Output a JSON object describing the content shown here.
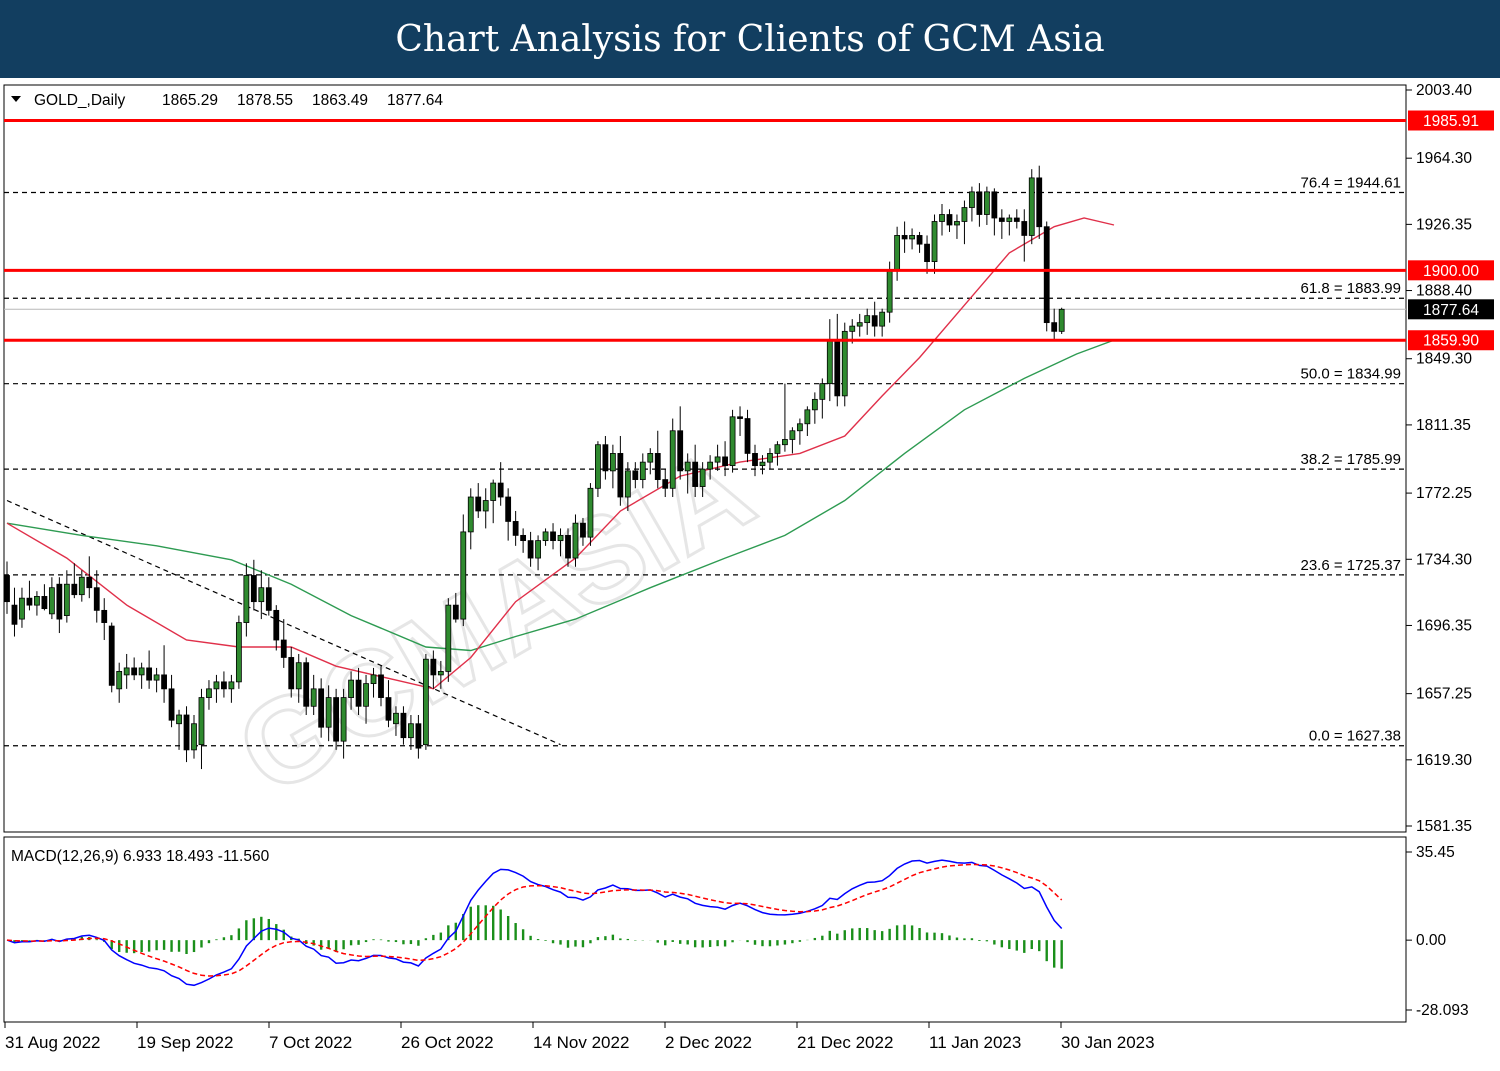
{
  "banner_title": "Chart Analysis for Clients of GCM Asia",
  "colors": {
    "banner_bg": "#123e60",
    "bull_candle": "#2f8a2f",
    "bear_candle": "#000000",
    "sr_line": "#ff0000",
    "fib_line": "#000000",
    "ma_fast": "#e0304a",
    "ma_slow": "#2e9b52",
    "macd_line": "#0000ff",
    "signal_line": "#ff0000",
    "histogram": "#1a8f1a"
  },
  "chart_data": [
    {
      "type": "candlestick",
      "symbol_label": "GOLD_,Daily",
      "ohlc_header": [
        "1865.29",
        "1878.55",
        "1863.49",
        "1877.64"
      ],
      "price_ticks": [
        "2003.40",
        "1964.30",
        "1926.35",
        "1888.40",
        "1849.30",
        "1811.35",
        "1772.25",
        "1734.30",
        "1696.35",
        "1657.25",
        "1619.30",
        "1581.35"
      ],
      "ylim": [
        1581.35,
        2003.4
      ],
      "date_labels": [
        "31 Aug 2022",
        "19 Sep 2022",
        "7 Oct 2022",
        "26 Oct 2022",
        "14 Nov 2022",
        "2 Dec 2022",
        "21 Dec 2022",
        "11 Jan 2023",
        "30 Jan 2023"
      ],
      "price_tags": [
        {
          "value": 1985.91,
          "label": "1985.91",
          "kind": "resistance"
        },
        {
          "value": 1900.0,
          "label": "1900.00",
          "kind": "resistance"
        },
        {
          "value": 1877.64,
          "label": "1877.64",
          "kind": "current"
        },
        {
          "value": 1859.9,
          "label": "1859.90",
          "kind": "support"
        }
      ],
      "fibonacci": [
        {
          "value": 1944.61,
          "label": "76.4 = 1944.61"
        },
        {
          "value": 1883.99,
          "label": "61.8 = 1883.99"
        },
        {
          "value": 1834.99,
          "label": "50.0 = 1834.99"
        },
        {
          "value": 1785.99,
          "label": "38.2 = 1785.99"
        },
        {
          "value": 1725.37,
          "label": "23.6 = 1725.37"
        },
        {
          "value": 1627.38,
          "label": "0.0 = 1627.38"
        }
      ],
      "candles": [
        {
          "o": 1725,
          "h": 1733,
          "l": 1703,
          "c": 1710
        },
        {
          "o": 1708,
          "h": 1718,
          "l": 1690,
          "c": 1697
        },
        {
          "o": 1700,
          "h": 1718,
          "l": 1695,
          "c": 1712
        },
        {
          "o": 1712,
          "h": 1722,
          "l": 1705,
          "c": 1708
        },
        {
          "o": 1708,
          "h": 1716,
          "l": 1702,
          "c": 1713
        },
        {
          "o": 1713,
          "h": 1720,
          "l": 1705,
          "c": 1706
        },
        {
          "o": 1703,
          "h": 1724,
          "l": 1700,
          "c": 1718
        },
        {
          "o": 1720,
          "h": 1724,
          "l": 1692,
          "c": 1700
        },
        {
          "o": 1702,
          "h": 1728,
          "l": 1698,
          "c": 1720
        },
        {
          "o": 1720,
          "h": 1732,
          "l": 1712,
          "c": 1714
        },
        {
          "o": 1714,
          "h": 1728,
          "l": 1710,
          "c": 1724
        },
        {
          "o": 1724,
          "h": 1736,
          "l": 1712,
          "c": 1718
        },
        {
          "o": 1718,
          "h": 1728,
          "l": 1698,
          "c": 1705
        },
        {
          "o": 1705,
          "h": 1712,
          "l": 1688,
          "c": 1698
        },
        {
          "o": 1696,
          "h": 1698,
          "l": 1658,
          "c": 1662
        },
        {
          "o": 1660,
          "h": 1675,
          "l": 1652,
          "c": 1670
        },
        {
          "o": 1668,
          "h": 1680,
          "l": 1660,
          "c": 1672
        },
        {
          "o": 1672,
          "h": 1678,
          "l": 1665,
          "c": 1668
        },
        {
          "o": 1668,
          "h": 1675,
          "l": 1660,
          "c": 1672
        },
        {
          "o": 1672,
          "h": 1682,
          "l": 1660,
          "c": 1665
        },
        {
          "o": 1665,
          "h": 1672,
          "l": 1658,
          "c": 1668
        },
        {
          "o": 1668,
          "h": 1685,
          "l": 1652,
          "c": 1660
        },
        {
          "o": 1660,
          "h": 1668,
          "l": 1638,
          "c": 1642
        },
        {
          "o": 1640,
          "h": 1648,
          "l": 1625,
          "c": 1645
        },
        {
          "o": 1645,
          "h": 1650,
          "l": 1618,
          "c": 1625
        },
        {
          "o": 1625,
          "h": 1645,
          "l": 1620,
          "c": 1640
        },
        {
          "o": 1628,
          "h": 1660,
          "l": 1614,
          "c": 1655
        },
        {
          "o": 1655,
          "h": 1665,
          "l": 1648,
          "c": 1660
        },
        {
          "o": 1660,
          "h": 1668,
          "l": 1652,
          "c": 1664
        },
        {
          "o": 1664,
          "h": 1670,
          "l": 1655,
          "c": 1660
        },
        {
          "o": 1660,
          "h": 1668,
          "l": 1652,
          "c": 1664
        },
        {
          "o": 1664,
          "h": 1702,
          "l": 1660,
          "c": 1698
        },
        {
          "o": 1698,
          "h": 1732,
          "l": 1690,
          "c": 1725
        },
        {
          "o": 1725,
          "h": 1734,
          "l": 1705,
          "c": 1710
        },
        {
          "o": 1710,
          "h": 1728,
          "l": 1700,
          "c": 1718
        },
        {
          "o": 1718,
          "h": 1724,
          "l": 1702,
          "c": 1705
        },
        {
          "o": 1705,
          "h": 1708,
          "l": 1682,
          "c": 1688
        },
        {
          "o": 1688,
          "h": 1700,
          "l": 1672,
          "c": 1678
        },
        {
          "o": 1678,
          "h": 1684,
          "l": 1655,
          "c": 1660
        },
        {
          "o": 1660,
          "h": 1680,
          "l": 1652,
          "c": 1675
        },
        {
          "o": 1675,
          "h": 1678,
          "l": 1645,
          "c": 1650
        },
        {
          "o": 1650,
          "h": 1668,
          "l": 1645,
          "c": 1660
        },
        {
          "o": 1660,
          "h": 1666,
          "l": 1632,
          "c": 1638
        },
        {
          "o": 1638,
          "h": 1662,
          "l": 1630,
          "c": 1655
        },
        {
          "o": 1655,
          "h": 1660,
          "l": 1625,
          "c": 1630
        },
        {
          "o": 1630,
          "h": 1660,
          "l": 1620,
          "c": 1655
        },
        {
          "o": 1655,
          "h": 1670,
          "l": 1648,
          "c": 1665
        },
        {
          "o": 1665,
          "h": 1672,
          "l": 1645,
          "c": 1650
        },
        {
          "o": 1650,
          "h": 1668,
          "l": 1640,
          "c": 1663
        },
        {
          "o": 1663,
          "h": 1672,
          "l": 1655,
          "c": 1668
        },
        {
          "o": 1668,
          "h": 1673,
          "l": 1650,
          "c": 1655
        },
        {
          "o": 1655,
          "h": 1665,
          "l": 1638,
          "c": 1642
        },
        {
          "o": 1640,
          "h": 1650,
          "l": 1633,
          "c": 1646
        },
        {
          "o": 1646,
          "h": 1650,
          "l": 1628,
          "c": 1632
        },
        {
          "o": 1632,
          "h": 1645,
          "l": 1625,
          "c": 1640
        },
        {
          "o": 1640,
          "h": 1645,
          "l": 1620,
          "c": 1626
        },
        {
          "o": 1628,
          "h": 1680,
          "l": 1625,
          "c": 1677
        },
        {
          "o": 1677,
          "h": 1682,
          "l": 1660,
          "c": 1668
        },
        {
          "o": 1668,
          "h": 1676,
          "l": 1660,
          "c": 1670
        },
        {
          "o": 1670,
          "h": 1712,
          "l": 1664,
          "c": 1708
        },
        {
          "o": 1708,
          "h": 1715,
          "l": 1698,
          "c": 1700
        },
        {
          "o": 1700,
          "h": 1760,
          "l": 1696,
          "c": 1750
        },
        {
          "o": 1750,
          "h": 1775,
          "l": 1740,
          "c": 1770
        },
        {
          "o": 1770,
          "h": 1778,
          "l": 1758,
          "c": 1762
        },
        {
          "o": 1762,
          "h": 1775,
          "l": 1752,
          "c": 1768
        },
        {
          "o": 1768,
          "h": 1780,
          "l": 1755,
          "c": 1778
        },
        {
          "o": 1778,
          "h": 1790,
          "l": 1765,
          "c": 1770
        },
        {
          "o": 1770,
          "h": 1775,
          "l": 1745,
          "c": 1756
        },
        {
          "o": 1756,
          "h": 1762,
          "l": 1742,
          "c": 1748
        },
        {
          "o": 1748,
          "h": 1752,
          "l": 1738,
          "c": 1745
        },
        {
          "o": 1745,
          "h": 1750,
          "l": 1730,
          "c": 1735
        },
        {
          "o": 1735,
          "h": 1748,
          "l": 1728,
          "c": 1745
        },
        {
          "o": 1745,
          "h": 1752,
          "l": 1742,
          "c": 1750
        },
        {
          "o": 1750,
          "h": 1755,
          "l": 1740,
          "c": 1745
        },
        {
          "o": 1745,
          "h": 1752,
          "l": 1736,
          "c": 1748
        },
        {
          "o": 1748,
          "h": 1752,
          "l": 1730,
          "c": 1735
        },
        {
          "o": 1735,
          "h": 1760,
          "l": 1730,
          "c": 1755
        },
        {
          "o": 1755,
          "h": 1758,
          "l": 1742,
          "c": 1747
        },
        {
          "o": 1747,
          "h": 1778,
          "l": 1742,
          "c": 1775
        },
        {
          "o": 1775,
          "h": 1802,
          "l": 1770,
          "c": 1800
        },
        {
          "o": 1800,
          "h": 1805,
          "l": 1780,
          "c": 1785
        },
        {
          "o": 1785,
          "h": 1800,
          "l": 1775,
          "c": 1795
        },
        {
          "o": 1795,
          "h": 1805,
          "l": 1765,
          "c": 1770
        },
        {
          "o": 1770,
          "h": 1790,
          "l": 1762,
          "c": 1785
        },
        {
          "o": 1785,
          "h": 1790,
          "l": 1775,
          "c": 1780
        },
        {
          "o": 1780,
          "h": 1795,
          "l": 1775,
          "c": 1790
        },
        {
          "o": 1790,
          "h": 1798,
          "l": 1783,
          "c": 1795
        },
        {
          "o": 1795,
          "h": 1808,
          "l": 1775,
          "c": 1780
        },
        {
          "o": 1780,
          "h": 1786,
          "l": 1770,
          "c": 1775
        },
        {
          "o": 1775,
          "h": 1815,
          "l": 1770,
          "c": 1808
        },
        {
          "o": 1808,
          "h": 1822,
          "l": 1780,
          "c": 1785
        },
        {
          "o": 1785,
          "h": 1795,
          "l": 1772,
          "c": 1790
        },
        {
          "o": 1790,
          "h": 1800,
          "l": 1770,
          "c": 1776
        },
        {
          "o": 1776,
          "h": 1790,
          "l": 1770,
          "c": 1786
        },
        {
          "o": 1786,
          "h": 1794,
          "l": 1780,
          "c": 1790
        },
        {
          "o": 1790,
          "h": 1800,
          "l": 1785,
          "c": 1793
        },
        {
          "o": 1793,
          "h": 1802,
          "l": 1782,
          "c": 1788
        },
        {
          "o": 1788,
          "h": 1820,
          "l": 1784,
          "c": 1816
        },
        {
          "o": 1816,
          "h": 1822,
          "l": 1805,
          "c": 1815
        },
        {
          "o": 1815,
          "h": 1820,
          "l": 1790,
          "c": 1795
        },
        {
          "o": 1795,
          "h": 1800,
          "l": 1782,
          "c": 1788
        },
        {
          "o": 1788,
          "h": 1794,
          "l": 1783,
          "c": 1790
        },
        {
          "o": 1790,
          "h": 1798,
          "l": 1786,
          "c": 1795
        },
        {
          "o": 1795,
          "h": 1802,
          "l": 1788,
          "c": 1800
        },
        {
          "o": 1800,
          "h": 1835,
          "l": 1796,
          "c": 1803
        },
        {
          "o": 1803,
          "h": 1810,
          "l": 1795,
          "c": 1808
        },
        {
          "o": 1808,
          "h": 1815,
          "l": 1800,
          "c": 1812
        },
        {
          "o": 1812,
          "h": 1822,
          "l": 1805,
          "c": 1820
        },
        {
          "o": 1820,
          "h": 1830,
          "l": 1812,
          "c": 1826
        },
        {
          "o": 1826,
          "h": 1838,
          "l": 1815,
          "c": 1835
        },
        {
          "o": 1835,
          "h": 1872,
          "l": 1825,
          "c": 1860
        },
        {
          "o": 1860,
          "h": 1875,
          "l": 1822,
          "c": 1828
        },
        {
          "o": 1828,
          "h": 1870,
          "l": 1822,
          "c": 1865
        },
        {
          "o": 1865,
          "h": 1872,
          "l": 1858,
          "c": 1868
        },
        {
          "o": 1868,
          "h": 1875,
          "l": 1862,
          "c": 1870
        },
        {
          "o": 1870,
          "h": 1878,
          "l": 1863,
          "c": 1874
        },
        {
          "o": 1874,
          "h": 1882,
          "l": 1862,
          "c": 1868
        },
        {
          "o": 1868,
          "h": 1878,
          "l": 1862,
          "c": 1876
        },
        {
          "o": 1876,
          "h": 1905,
          "l": 1870,
          "c": 1900
        },
        {
          "o": 1900,
          "h": 1925,
          "l": 1894,
          "c": 1920
        },
        {
          "o": 1920,
          "h": 1928,
          "l": 1910,
          "c": 1918
        },
        {
          "o": 1918,
          "h": 1924,
          "l": 1912,
          "c": 1920
        },
        {
          "o": 1920,
          "h": 1922,
          "l": 1910,
          "c": 1915
        },
        {
          "o": 1915,
          "h": 1920,
          "l": 1898,
          "c": 1905
        },
        {
          "o": 1905,
          "h": 1932,
          "l": 1898,
          "c": 1928
        },
        {
          "o": 1928,
          "h": 1938,
          "l": 1920,
          "c": 1932
        },
        {
          "o": 1932,
          "h": 1935,
          "l": 1922,
          "c": 1926
        },
        {
          "o": 1926,
          "h": 1932,
          "l": 1918,
          "c": 1928
        },
        {
          "o": 1928,
          "h": 1940,
          "l": 1915,
          "c": 1936
        },
        {
          "o": 1936,
          "h": 1948,
          "l": 1928,
          "c": 1945
        },
        {
          "o": 1945,
          "h": 1950,
          "l": 1925,
          "c": 1932
        },
        {
          "o": 1932,
          "h": 1948,
          "l": 1926,
          "c": 1945
        },
        {
          "o": 1945,
          "h": 1947,
          "l": 1920,
          "c": 1930
        },
        {
          "o": 1930,
          "h": 1935,
          "l": 1918,
          "c": 1928
        },
        {
          "o": 1928,
          "h": 1932,
          "l": 1920,
          "c": 1930
        },
        {
          "o": 1930,
          "h": 1935,
          "l": 1924,
          "c": 1928
        },
        {
          "o": 1928,
          "h": 1935,
          "l": 1905,
          "c": 1920
        },
        {
          "o": 1920,
          "h": 1958,
          "l": 1915,
          "c": 1953
        },
        {
          "o": 1953,
          "h": 1960,
          "l": 1918,
          "c": 1925
        },
        {
          "o": 1925,
          "h": 1928,
          "l": 1865,
          "c": 1870
        },
        {
          "o": 1870,
          "h": 1878,
          "l": 1860,
          "c": 1865
        },
        {
          "o": 1865,
          "h": 1878.55,
          "l": 1863.49,
          "c": 1877.64
        }
      ],
      "ma_fast": [
        [
          0,
          1755
        ],
        [
          8,
          1735
        ],
        [
          16,
          1708
        ],
        [
          24,
          1688
        ],
        [
          31,
          1684
        ],
        [
          38,
          1684
        ],
        [
          44,
          1673
        ],
        [
          52,
          1665
        ],
        [
          57,
          1660
        ],
        [
          62,
          1678
        ],
        [
          68,
          1710
        ],
        [
          76,
          1735
        ],
        [
          82,
          1762
        ],
        [
          90,
          1782
        ],
        [
          98,
          1790
        ],
        [
          106,
          1795
        ],
        [
          112,
          1805
        ],
        [
          117,
          1828
        ],
        [
          122,
          1850
        ],
        [
          128,
          1880
        ],
        [
          134,
          1910
        ],
        [
          140,
          1925
        ],
        [
          144,
          1930
        ],
        [
          148,
          1926
        ]
      ],
      "ma_slow": [
        [
          0,
          1755
        ],
        [
          10,
          1748
        ],
        [
          20,
          1742
        ],
        [
          30,
          1734
        ],
        [
          38,
          1720
        ],
        [
          46,
          1702
        ],
        [
          56,
          1684
        ],
        [
          62,
          1682
        ],
        [
          68,
          1690
        ],
        [
          76,
          1700
        ],
        [
          86,
          1718
        ],
        [
          96,
          1735
        ],
        [
          104,
          1748
        ],
        [
          112,
          1768
        ],
        [
          120,
          1795
        ],
        [
          128,
          1820
        ],
        [
          136,
          1838
        ],
        [
          143,
          1852
        ],
        [
          148,
          1860
        ]
      ],
      "trendline": [
        [
          0,
          1768
        ],
        [
          74,
          1628
        ]
      ]
    },
    {
      "type": "macd",
      "label": "MACD(12,26,9) 6.933 18.493 -11.560",
      "ticks": [
        "35.45",
        "0.00",
        "-28.093"
      ],
      "ylim": [
        -28.093,
        35.45
      ]
    }
  ]
}
